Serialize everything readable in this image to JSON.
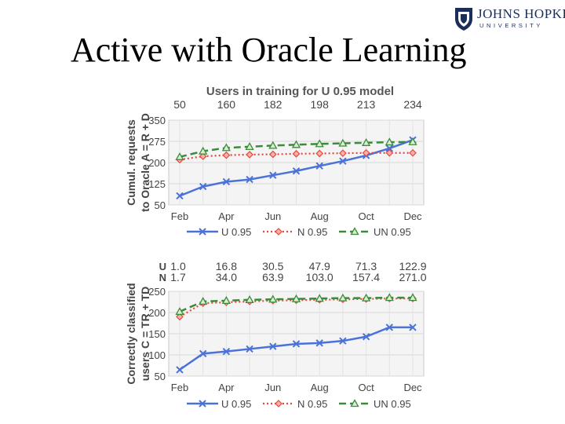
{
  "slide": {
    "title": "Active with Oracle Learning"
  },
  "logo": {
    "main": "JOHNS HOPKINS",
    "sub": "UNIVERSITY"
  },
  "colors": {
    "u": "#4a72d8",
    "n": "#e04a44",
    "un": "#3d8a3d"
  },
  "chart_data": [
    {
      "type": "line",
      "title": "Users in training for U 0.95 model",
      "top_labels": [
        "50",
        "160",
        "182",
        "198",
        "213",
        "234"
      ],
      "ylabel": [
        "Cumul. requests",
        "to Oracle A = R + D"
      ],
      "xlabel": "",
      "xticks": [
        "Feb",
        "Apr",
        "Jun",
        "Aug",
        "Oct",
        "Dec"
      ],
      "yticks": [
        50,
        125,
        200,
        275,
        350
      ],
      "ylim": [
        50,
        350
      ],
      "x": [
        1,
        2,
        3,
        4,
        5,
        6,
        7,
        8,
        9,
        10,
        11
      ],
      "grid": true,
      "legend_position": "bottom",
      "series": [
        {
          "name": "U 0.95",
          "values": [
            82,
            115,
            132,
            140,
            155,
            170,
            188,
            205,
            225,
            250,
            280
          ]
        },
        {
          "name": "N 0.95",
          "values": [
            210,
            222,
            226,
            228,
            229,
            231,
            232,
            233,
            234,
            234,
            234
          ]
        },
        {
          "name": "UN 0.95",
          "values": [
            220,
            240,
            252,
            256,
            260,
            263,
            266,
            268,
            270,
            272,
            273
          ]
        }
      ]
    },
    {
      "type": "line",
      "title": "",
      "row_labels": [
        {
          "label": "U",
          "values": [
            "1.0",
            "16.8",
            "30.5",
            "47.9",
            "71.3",
            "122.9"
          ]
        },
        {
          "label": "N",
          "values": [
            "1.7",
            "34.0",
            "63.9",
            "103.0",
            "157.4",
            "271.0"
          ]
        }
      ],
      "ylabel": [
        "Correctly classified",
        "users C = TR + TD"
      ],
      "xlabel": "",
      "xticks": [
        "Feb",
        "Apr",
        "Jun",
        "Aug",
        "Oct",
        "Dec"
      ],
      "yticks": [
        50,
        100,
        150,
        200,
        250
      ],
      "ylim": [
        50,
        250
      ],
      "x": [
        1,
        2,
        3,
        4,
        5,
        6,
        7,
        8,
        9,
        10,
        11
      ],
      "grid": true,
      "legend_position": "bottom",
      "series": [
        {
          "name": "U 0.95",
          "values": [
            65,
            103,
            108,
            114,
            120,
            126,
            128,
            133,
            143,
            165,
            165
          ]
        },
        {
          "name": "N 0.95",
          "values": [
            190,
            222,
            224,
            226,
            228,
            229,
            230,
            231,
            232,
            233,
            233
          ]
        },
        {
          "name": "UN 0.95",
          "values": [
            202,
            226,
            228,
            230,
            231,
            232,
            233,
            234,
            234,
            235,
            235
          ]
        }
      ]
    }
  ]
}
